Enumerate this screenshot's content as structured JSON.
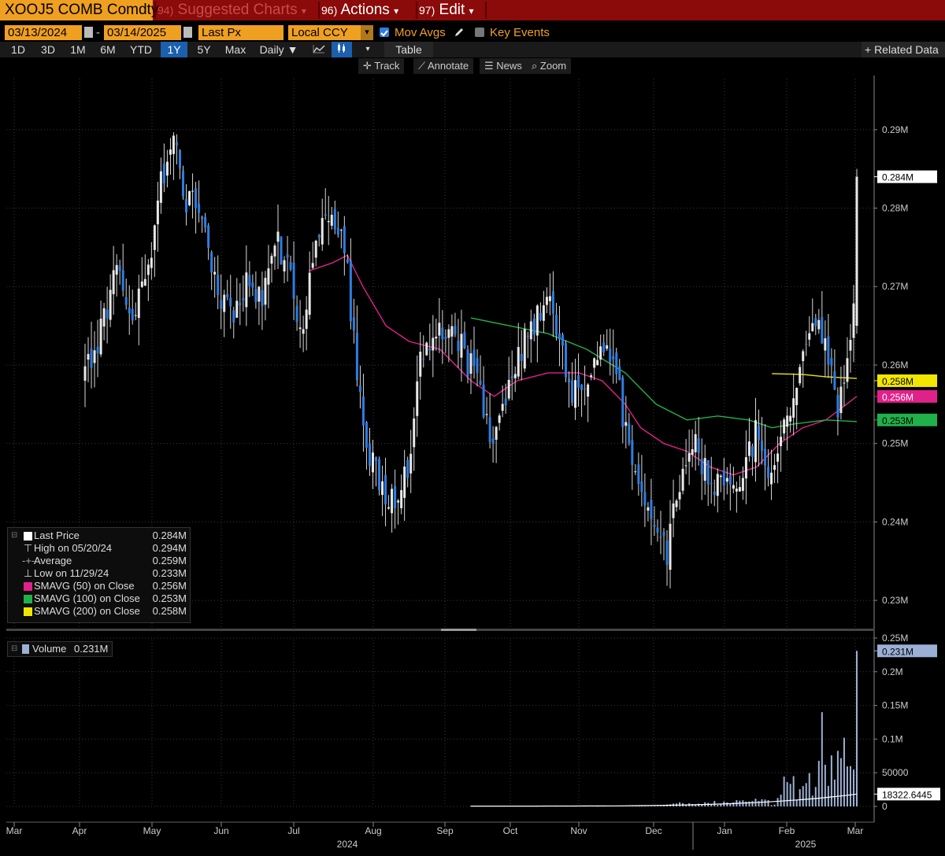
{
  "toolbar": {
    "ticker": "XOOJ5 COMB Comdty",
    "suggested_num": "94)",
    "suggested_label": "Suggested Charts",
    "actions_num": "96)",
    "actions_label": "Actions",
    "edit_num": "97)",
    "edit_label": "Edit",
    "arrow": "▾"
  },
  "settings": {
    "start_date": "03/13/2024",
    "end_date": "03/14/2025",
    "dash": "-",
    "field": "Last Px",
    "currency": "Local CCY",
    "mov_avgs": "Mov Avgs",
    "key_events": "Key Events"
  },
  "ranges": [
    "1D",
    "3D",
    "1M",
    "6M",
    "YTD",
    "1Y",
    "5Y",
    "Max"
  ],
  "selected_range": "1Y",
  "frequency": "Daily ▼",
  "table_label": "Table",
  "related_data": "+ Related Data",
  "tools": [
    "Track",
    "Annotate",
    "News",
    "Zoom"
  ],
  "colors": {
    "up_candle": "#e8e8e8",
    "down_candle": "#2f7de1",
    "smavg50": "#e0218a",
    "smavg100": "#21b14a",
    "smavg200": "#f2e600",
    "volume": "#9bb0d4",
    "accent": "#f0a020"
  },
  "legend": {
    "last_price_label": "Last Price",
    "last_price_value": "0.284M",
    "high_label": "High on 05/20/24",
    "high_value": "0.294M",
    "avg_label": "Average",
    "avg_value": "0.259M",
    "low_label": "Low on 11/29/24",
    "low_value": "0.233M",
    "sma50_label": "SMAVG (50)  on Close",
    "sma50_value": "0.256M",
    "sma100_label": "SMAVG (100)  on Close",
    "sma100_value": "0.253M",
    "sma200_label": "SMAVG (200)  on Close",
    "sma200_value": "0.258M"
  },
  "volume_legend": {
    "label": "Volume",
    "value": "0.231M"
  },
  "chart_data": {
    "type": "candlestick",
    "x_months": [
      "Mar",
      "Apr",
      "May",
      "Jun",
      "Jul",
      "Aug",
      "Sep",
      "Oct",
      "Nov",
      "Dec",
      "Jan",
      "Feb",
      "Mar"
    ],
    "x_years": [
      "2024",
      "2025"
    ],
    "price_axis": {
      "ticks": [
        0.23,
        0.24,
        0.25,
        0.26,
        0.27,
        0.28,
        0.29
      ],
      "tick_labels": [
        "0.23M",
        "0.24M",
        "0.25M",
        "0.26M",
        "0.27M",
        "0.28M",
        "0.29M"
      ],
      "range": [
        0.2265,
        0.2965
      ]
    },
    "price_badges": [
      {
        "value": 0.284,
        "label": "0.284M",
        "color": "#ffffff",
        "text_color": "#000000"
      },
      {
        "value": 0.258,
        "label": "0.258M",
        "color": "#f2e600",
        "text_color": "#000000"
      },
      {
        "value": 0.256,
        "label": "0.256M",
        "color": "#e0218a",
        "text_color": "#ffffff"
      },
      {
        "value": 0.253,
        "label": "0.253M",
        "color": "#21b14a",
        "text_color": "#000000"
      }
    ],
    "anchors": [
      [
        0.0,
        0.259
      ],
      [
        0.02,
        0.264
      ],
      [
        0.04,
        0.272
      ],
      [
        0.06,
        0.265
      ],
      [
        0.08,
        0.271
      ],
      [
        0.1,
        0.284
      ],
      [
        0.115,
        0.289
      ],
      [
        0.13,
        0.281
      ],
      [
        0.15,
        0.28
      ],
      [
        0.17,
        0.27
      ],
      [
        0.19,
        0.266
      ],
      [
        0.21,
        0.271
      ],
      [
        0.23,
        0.268
      ],
      [
        0.25,
        0.276
      ],
      [
        0.27,
        0.27
      ],
      [
        0.28,
        0.264
      ],
      [
        0.3,
        0.277
      ],
      [
        0.325,
        0.279
      ],
      [
        0.34,
        0.272
      ],
      [
        0.36,
        0.251
      ],
      [
        0.38,
        0.245
      ],
      [
        0.4,
        0.243
      ],
      [
        0.42,
        0.248
      ],
      [
        0.43,
        0.259
      ],
      [
        0.45,
        0.263
      ],
      [
        0.47,
        0.264
      ],
      [
        0.49,
        0.262
      ],
      [
        0.51,
        0.257
      ],
      [
        0.53,
        0.25
      ],
      [
        0.55,
        0.258
      ],
      [
        0.57,
        0.263
      ],
      [
        0.6,
        0.268
      ],
      [
        0.61,
        0.265
      ],
      [
        0.63,
        0.257
      ],
      [
        0.65,
        0.258
      ],
      [
        0.67,
        0.263
      ],
      [
        0.69,
        0.258
      ],
      [
        0.705,
        0.249
      ],
      [
        0.72,
        0.243
      ],
      [
        0.74,
        0.241
      ],
      [
        0.755,
        0.236
      ],
      [
        0.77,
        0.245
      ],
      [
        0.79,
        0.251
      ],
      [
        0.81,
        0.244
      ],
      [
        0.83,
        0.246
      ],
      [
        0.85,
        0.244
      ],
      [
        0.87,
        0.252
      ],
      [
        0.89,
        0.246
      ],
      [
        0.9,
        0.249
      ],
      [
        0.92,
        0.257
      ],
      [
        0.935,
        0.262
      ],
      [
        0.95,
        0.265
      ],
      [
        0.965,
        0.26
      ],
      [
        0.975,
        0.254
      ],
      [
        0.985,
        0.259
      ],
      [
        0.995,
        0.265
      ],
      [
        1.0,
        0.284
      ]
    ],
    "sma50": [
      [
        0.29,
        0.272
      ],
      [
        0.32,
        0.273
      ],
      [
        0.34,
        0.274
      ],
      [
        0.36,
        0.27
      ],
      [
        0.39,
        0.265
      ],
      [
        0.42,
        0.263
      ],
      [
        0.46,
        0.262
      ],
      [
        0.5,
        0.258
      ],
      [
        0.53,
        0.256
      ],
      [
        0.56,
        0.258
      ],
      [
        0.6,
        0.259
      ],
      [
        0.64,
        0.259
      ],
      [
        0.67,
        0.258
      ],
      [
        0.7,
        0.255
      ],
      [
        0.72,
        0.252
      ],
      [
        0.75,
        0.25
      ],
      [
        0.78,
        0.249
      ],
      [
        0.81,
        0.247
      ],
      [
        0.84,
        0.246
      ],
      [
        0.87,
        0.247
      ],
      [
        0.9,
        0.25
      ],
      [
        0.93,
        0.252
      ],
      [
        0.96,
        0.253
      ],
      [
        1.0,
        0.256
      ]
    ],
    "sma100": [
      [
        0.5,
        0.266
      ],
      [
        0.55,
        0.265
      ],
      [
        0.6,
        0.264
      ],
      [
        0.65,
        0.262
      ],
      [
        0.7,
        0.259
      ],
      [
        0.74,
        0.255
      ],
      [
        0.78,
        0.253
      ],
      [
        0.82,
        0.2535
      ],
      [
        0.86,
        0.253
      ],
      [
        0.89,
        0.252
      ],
      [
        0.92,
        0.2525
      ],
      [
        0.96,
        0.253
      ],
      [
        1.0,
        0.2528
      ]
    ],
    "sma200": [
      [
        0.89,
        0.2589
      ],
      [
        0.93,
        0.2588
      ],
      [
        0.96,
        0.2585
      ],
      [
        1.0,
        0.2583
      ]
    ],
    "summary": {
      "last": 0.284,
      "high": 0.294,
      "high_date": "05/20/24",
      "low": 0.233,
      "low_date": "11/29/24",
      "average": 0.259
    },
    "volume_axis": {
      "ticks": [
        0,
        50000,
        100000,
        150000,
        200000,
        250000
      ],
      "tick_labels": [
        "0",
        "50000",
        "0.1M",
        "0.15M",
        "0.2M",
        "0.25M"
      ],
      "range": [
        0,
        250000
      ]
    },
    "volume_badges": [
      {
        "value": 231000,
        "label": "0.231M",
        "color": "#9bb0d4",
        "text_color": "#000000"
      },
      {
        "value": 18322.6445,
        "label": "18322.6445",
        "color": "#ffffff",
        "text_color": "#000000"
      }
    ],
    "volume_last": 231000,
    "volume_avg_last": 18322.6445
  }
}
